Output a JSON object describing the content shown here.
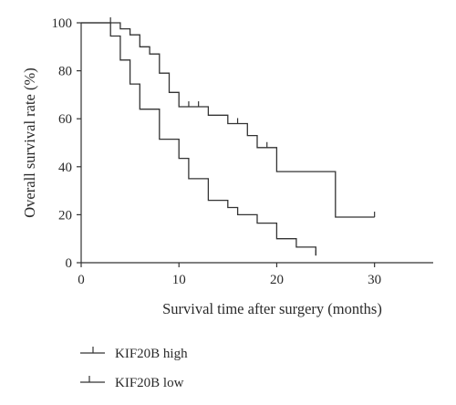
{
  "chart_data": {
    "type": "line",
    "subtype": "kaplan-meier",
    "xlabel": "Survival time after surgery (months)",
    "ylabel": "Overall survival rate (%)",
    "xlim": [
      0,
      36
    ],
    "ylim": [
      0,
      100
    ],
    "xticks": [
      0,
      10,
      20,
      30
    ],
    "yticks": [
      0,
      20,
      40,
      60,
      80,
      100
    ],
    "grid": false,
    "legend_position": "bottom-left",
    "series": [
      {
        "name": "KIF20B high",
        "color": "#333333",
        "legend_marker": "censor-up",
        "steps": [
          [
            0,
            100
          ],
          [
            4,
            100
          ],
          [
            4,
            97.5
          ],
          [
            5,
            97.5
          ],
          [
            5,
            95
          ],
          [
            6,
            95
          ],
          [
            6,
            90
          ],
          [
            7,
            90
          ],
          [
            7,
            87
          ],
          [
            8,
            87
          ],
          [
            8,
            79
          ],
          [
            9,
            79
          ],
          [
            9,
            71
          ],
          [
            10,
            71
          ],
          [
            10,
            65
          ],
          [
            13,
            65
          ],
          [
            13,
            61.5
          ],
          [
            15,
            61.5
          ],
          [
            15,
            58
          ],
          [
            17,
            58
          ],
          [
            17,
            53
          ],
          [
            18,
            53
          ],
          [
            18,
            48
          ],
          [
            20,
            48
          ],
          [
            20,
            38
          ],
          [
            26,
            38
          ],
          [
            26,
            19
          ],
          [
            30,
            19
          ]
        ],
        "censored": [
          [
            3,
            100
          ],
          [
            11,
            65
          ],
          [
            12,
            65
          ],
          [
            16,
            58
          ],
          [
            19,
            48
          ],
          [
            30,
            19
          ]
        ]
      },
      {
        "name": "KIF20B low",
        "color": "#333333",
        "legend_marker": "censor-up-left",
        "steps": [
          [
            0,
            100
          ],
          [
            3,
            100
          ],
          [
            3,
            94.5
          ],
          [
            4,
            94.5
          ],
          [
            4,
            84.5
          ],
          [
            5,
            84.5
          ],
          [
            5,
            74.5
          ],
          [
            6,
            74.5
          ],
          [
            6,
            64
          ],
          [
            8,
            64
          ],
          [
            8,
            51.5
          ],
          [
            10,
            51.5
          ],
          [
            10,
            43.5
          ],
          [
            11,
            43.5
          ],
          [
            11,
            35
          ],
          [
            13,
            35
          ],
          [
            13,
            26
          ],
          [
            15,
            26
          ],
          [
            15,
            23
          ],
          [
            16,
            23
          ],
          [
            16,
            20
          ],
          [
            18,
            20
          ],
          [
            18,
            16.5
          ],
          [
            20,
            16.5
          ],
          [
            20,
            10
          ],
          [
            22,
            10
          ],
          [
            22,
            6.5
          ],
          [
            24,
            6.5
          ],
          [
            24,
            3
          ]
        ],
        "censored": [
          [
            24,
            3
          ]
        ]
      }
    ]
  }
}
